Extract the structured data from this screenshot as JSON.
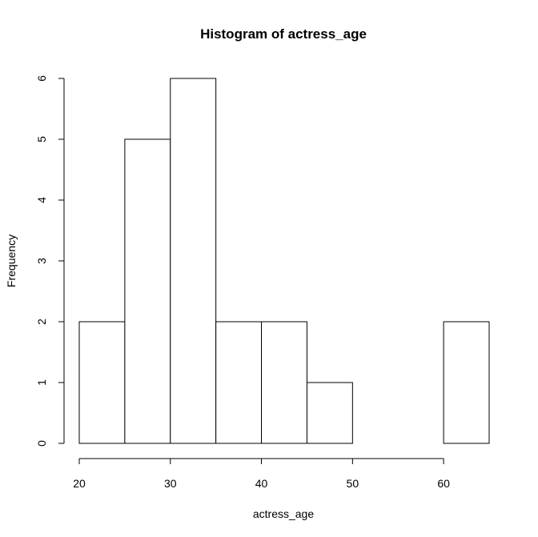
{
  "chart_data": {
    "type": "bar",
    "title": "Histogram of actress_age",
    "xlabel": "actress_age",
    "ylabel": "Frequency",
    "bins": [
      {
        "start": 20,
        "end": 25,
        "count": 2
      },
      {
        "start": 25,
        "end": 30,
        "count": 5
      },
      {
        "start": 30,
        "end": 35,
        "count": 6
      },
      {
        "start": 35,
        "end": 40,
        "count": 2
      },
      {
        "start": 40,
        "end": 45,
        "count": 2
      },
      {
        "start": 45,
        "end": 50,
        "count": 1
      },
      {
        "start": 50,
        "end": 55,
        "count": 0
      },
      {
        "start": 55,
        "end": 60,
        "count": 0
      },
      {
        "start": 60,
        "end": 65,
        "count": 2
      }
    ],
    "xticks": [
      20,
      30,
      40,
      50,
      60
    ],
    "yticks": [
      0,
      1,
      2,
      3,
      4,
      5,
      6
    ],
    "xlim": [
      20,
      65
    ],
    "ylim": [
      0,
      6
    ],
    "grid": false,
    "colors": {
      "bar_fill": "#ffffff",
      "bar_stroke": "#000000"
    }
  }
}
